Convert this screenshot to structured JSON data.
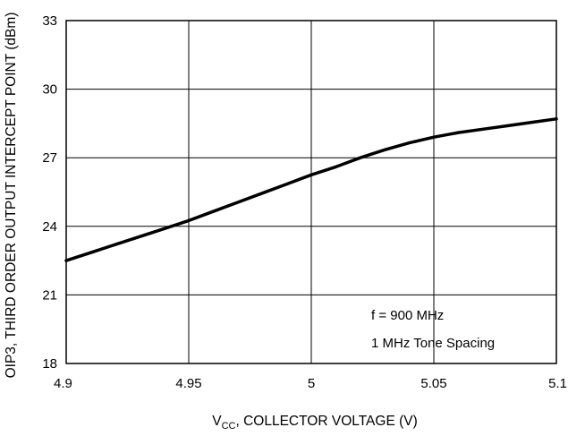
{
  "chart_data": {
    "type": "line",
    "xlabel_main": "V",
    "xlabel_sub": "CC",
    "xlabel_rest": ", COLLECTOR VOLTAGE (V)",
    "ylabel": "OIP3, THIRD ORDER OUTPUT INTERCEPT POINT (dBm)",
    "xlim": [
      4.9,
      5.1
    ],
    "ylim": [
      18,
      33
    ],
    "xticks": [
      4.9,
      4.95,
      5.0,
      5.05,
      5.1
    ],
    "xtick_labels": [
      "4.9",
      "4.95",
      "5",
      "5.05",
      "5.1"
    ],
    "yticks": [
      18,
      21,
      24,
      27,
      30,
      33
    ],
    "ytick_labels": [
      "18",
      "21",
      "24",
      "27",
      "30",
      "33"
    ],
    "grid": true,
    "annotations": [
      "f = 900 MHz",
      "1 MHz Tone Spacing"
    ],
    "series": [
      {
        "x": [
          4.9,
          4.91,
          4.92,
          4.93,
          4.94,
          4.95,
          4.96,
          4.97,
          4.98,
          4.99,
          5.0,
          5.01,
          5.02,
          5.03,
          5.04,
          5.05,
          5.06,
          5.07,
          5.08,
          5.09,
          5.1
        ],
        "y": [
          22.5,
          22.85,
          23.2,
          23.55,
          23.9,
          24.25,
          24.65,
          25.05,
          25.45,
          25.85,
          26.25,
          26.6,
          27.0,
          27.35,
          27.65,
          27.9,
          28.1,
          28.25,
          28.4,
          28.55,
          28.7
        ]
      }
    ]
  }
}
